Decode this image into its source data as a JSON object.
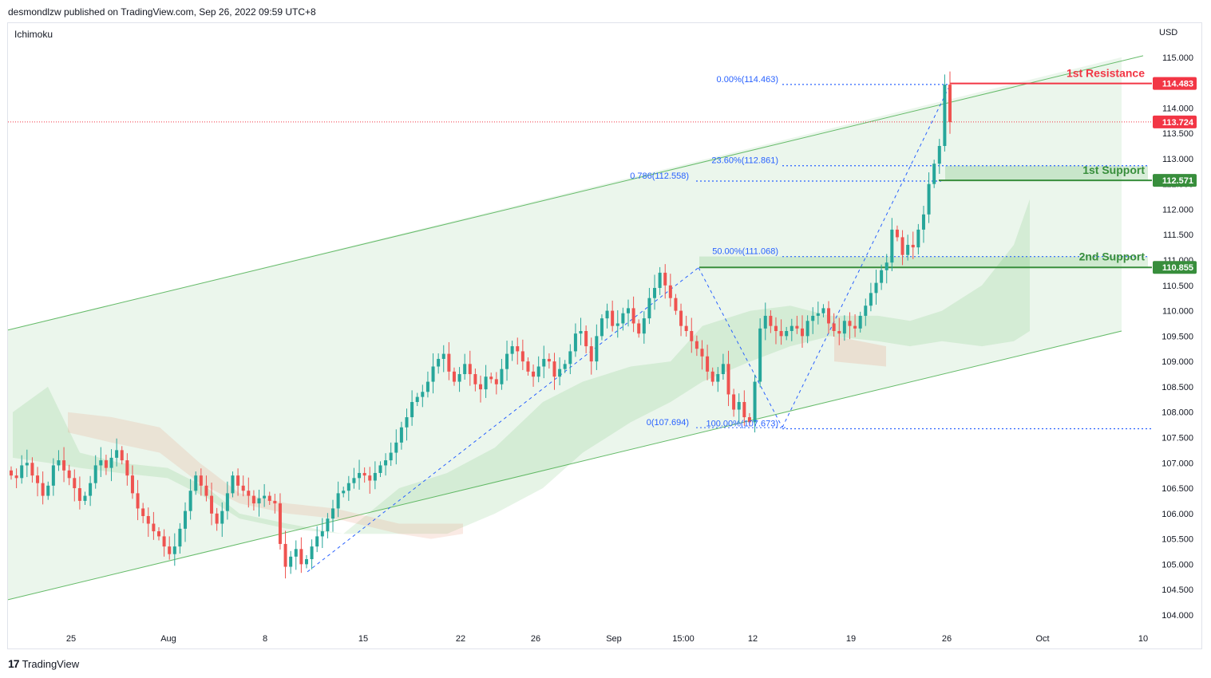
{
  "header": {
    "publisher": "desmondlzw published on TradingView.com, Sep 26, 2022 09:59 UTC+8"
  },
  "indicator": {
    "name": "Ichimoku"
  },
  "currency": "USD",
  "footer": {
    "logo_mark": "17",
    "brand": "TradingView"
  },
  "colors": {
    "bull": "#26a69a",
    "bear": "#ef5350",
    "channel": "#66bb6a",
    "support": "#388e3c",
    "resistance": "#f23645",
    "fib": "#2962ff",
    "current": "#f23645"
  },
  "chart_data": {
    "type": "candlestick",
    "y_range": [
      103.7,
      115.5
    ],
    "y_ticks": [
      104.0,
      104.5,
      105.0,
      105.5,
      106.0,
      106.5,
      107.0,
      107.5,
      108.0,
      108.5,
      109.0,
      109.5,
      110.0,
      110.5,
      111.0,
      111.5,
      112.0,
      112.5,
      113.0,
      113.5,
      114.0,
      114.5,
      115.0
    ],
    "y_tick_labels": [
      "104.000",
      "104.500",
      "105.000",
      "105.500",
      "106.000",
      "106.500",
      "107.000",
      "107.500",
      "108.000",
      "108.500",
      "109.000",
      "109.500",
      "110.000",
      "110.500",
      "111.000",
      "111.500",
      "112.000",
      "112.500",
      "113.000",
      "113.500",
      "114.000",
      "114.500",
      "115.000"
    ],
    "x_ticks": [
      "25",
      "Aug",
      "8",
      "15",
      "22",
      "26",
      "Sep",
      "15:00",
      "12",
      "19",
      "26",
      "Oct",
      "10"
    ],
    "price_tags": [
      {
        "label": "114.483",
        "value": 114.483,
        "kind": "resistance"
      },
      {
        "label": "113.724",
        "value": 113.724,
        "kind": "current"
      },
      {
        "label": "112.571",
        "value": 112.571,
        "kind": "support"
      },
      {
        "label": "110.855",
        "value": 110.855,
        "kind": "support"
      }
    ],
    "levels": [
      {
        "name": "1st Resistance",
        "value": 114.483,
        "kind": "resistance"
      },
      {
        "name": "1st Support",
        "value": 112.571,
        "kind": "support"
      },
      {
        "name": "2nd Support",
        "value": 110.855,
        "kind": "support"
      }
    ],
    "fib_labels": [
      {
        "label": "0.00%(114.463)",
        "value": 114.463
      },
      {
        "label": "23.60%(112.861)",
        "value": 112.861
      },
      {
        "label": "0.786(112.558)",
        "value": 112.558
      },
      {
        "label": "50.00%(111.068)",
        "value": 111.068
      },
      {
        "label": "0(107.694)",
        "value": 107.694
      },
      {
        "label": "100.00%(107.673)",
        "value": 107.673
      }
    ],
    "channel": {
      "upper_start": 109.62,
      "upper_end": 115.0,
      "lower_start": 104.3,
      "lower_end": 109.6
    },
    "path_close": [
      106.75,
      106.7,
      106.95,
      107.0,
      106.75,
      106.6,
      106.35,
      106.55,
      106.95,
      107.05,
      106.85,
      106.7,
      106.5,
      106.25,
      106.35,
      106.6,
      106.95,
      107.05,
      106.9,
      107.1,
      107.25,
      107.05,
      106.75,
      106.4,
      106.1,
      105.95,
      105.8,
      105.65,
      105.55,
      105.35,
      105.2,
      105.35,
      105.7,
      106.05,
      106.45,
      106.75,
      106.55,
      106.35,
      106.0,
      105.8,
      106.05,
      106.4,
      106.75,
      106.55,
      106.45,
      106.35,
      106.2,
      106.3,
      106.35,
      106.25,
      106.2,
      105.4,
      104.95,
      105.15,
      105.3,
      105.0,
      105.1,
      105.35,
      105.55,
      105.65,
      105.9,
      106.1,
      106.4,
      106.45,
      106.6,
      106.7,
      106.8,
      106.75,
      106.65,
      106.8,
      106.95,
      107.05,
      107.2,
      107.4,
      107.7,
      107.9,
      108.2,
      108.3,
      108.4,
      108.6,
      108.9,
      109.05,
      109.15,
      108.8,
      108.6,
      108.75,
      108.95,
      108.75,
      108.55,
      108.45,
      108.7,
      108.65,
      108.55,
      108.85,
      109.15,
      109.3,
      109.2,
      109.0,
      108.8,
      108.7,
      108.9,
      109.05,
      109.0,
      108.7,
      108.85,
      108.95,
      109.2,
      109.55,
      109.6,
      109.3,
      109.0,
      109.5,
      109.85,
      110.0,
      109.7,
      109.75,
      109.95,
      110.05,
      109.75,
      109.55,
      109.85,
      110.25,
      110.45,
      110.75,
      110.5,
      110.25,
      110.0,
      109.7,
      109.6,
      109.4,
      109.25,
      109.1,
      108.8,
      108.6,
      108.75,
      108.95,
      108.35,
      108.05,
      108.2,
      107.9,
      107.8,
      108.6,
      109.65,
      109.9,
      109.7,
      109.6,
      109.5,
      109.6,
      109.7,
      109.65,
      109.5,
      109.8,
      109.9,
      109.95,
      110.05,
      109.75,
      109.6,
      109.55,
      109.8,
      109.7,
      109.65,
      109.9,
      110.1,
      110.35,
      110.55,
      110.8,
      110.95,
      111.6,
      111.45,
      111.1,
      111.3,
      111.25,
      111.6,
      111.9,
      112.5,
      112.9,
      113.25,
      114.46,
      113.72
    ],
    "cloud_green_top": [
      [
        16,
        108.0
      ],
      [
        60,
        108.5
      ],
      [
        100,
        107.2
      ],
      [
        150,
        107.0
      ],
      [
        210,
        106.9
      ],
      [
        260,
        106.5
      ],
      [
        300,
        106.0
      ],
      [
        360,
        105.8
      ],
      [
        430,
        105.6
      ],
      [
        500,
        106.5
      ],
      [
        560,
        106.8
      ],
      [
        620,
        107.3
      ],
      [
        680,
        108.2
      ],
      [
        730,
        108.6
      ],
      [
        790,
        108.9
      ],
      [
        840,
        109.0
      ],
      [
        880,
        109.7
      ],
      [
        940,
        110.0
      ],
      [
        990,
        110.1
      ],
      [
        1040,
        109.9
      ],
      [
        1100,
        109.9
      ],
      [
        1140,
        109.8
      ],
      [
        1180,
        110.0
      ],
      [
        1230,
        110.5
      ],
      [
        1270,
        111.3
      ],
      [
        1290,
        112.2
      ]
    ],
    "cloud_green_bottom": [
      [
        16,
        107.1
      ],
      [
        60,
        107.0
      ],
      [
        100,
        106.9
      ],
      [
        150,
        106.8
      ],
      [
        210,
        106.7
      ],
      [
        260,
        106.3
      ],
      [
        300,
        105.9
      ],
      [
        360,
        105.7
      ],
      [
        430,
        105.6
      ],
      [
        500,
        105.6
      ],
      [
        560,
        105.6
      ],
      [
        620,
        106.0
      ],
      [
        680,
        106.5
      ],
      [
        730,
        107.2
      ],
      [
        790,
        107.8
      ],
      [
        840,
        108.2
      ],
      [
        880,
        108.6
      ],
      [
        940,
        109.0
      ],
      [
        990,
        109.3
      ],
      [
        1040,
        109.5
      ],
      [
        1100,
        109.4
      ],
      [
        1140,
        109.3
      ],
      [
        1180,
        109.4
      ],
      [
        1230,
        109.3
      ],
      [
        1270,
        109.4
      ],
      [
        1290,
        109.6
      ]
    ],
    "cloud_red_top": [
      [
        85,
        108.0
      ],
      [
        140,
        107.9
      ],
      [
        200,
        107.7
      ],
      [
        250,
        107.0
      ],
      [
        300,
        106.4
      ],
      [
        360,
        106.2
      ],
      [
        420,
        106.1
      ],
      [
        500,
        105.8
      ],
      [
        540,
        105.8
      ],
      [
        580,
        105.8
      ],
      [
        1045,
        109.5
      ],
      [
        1110,
        109.3
      ]
    ],
    "cloud_red_bottom": [
      [
        85,
        107.6
      ],
      [
        140,
        107.4
      ],
      [
        200,
        107.2
      ],
      [
        250,
        106.6
      ],
      [
        300,
        106.2
      ],
      [
        360,
        106.0
      ],
      [
        420,
        105.9
      ],
      [
        500,
        105.6
      ],
      [
        540,
        105.5
      ],
      [
        580,
        105.6
      ],
      [
        1045,
        109.0
      ],
      [
        1110,
        108.9
      ]
    ]
  }
}
